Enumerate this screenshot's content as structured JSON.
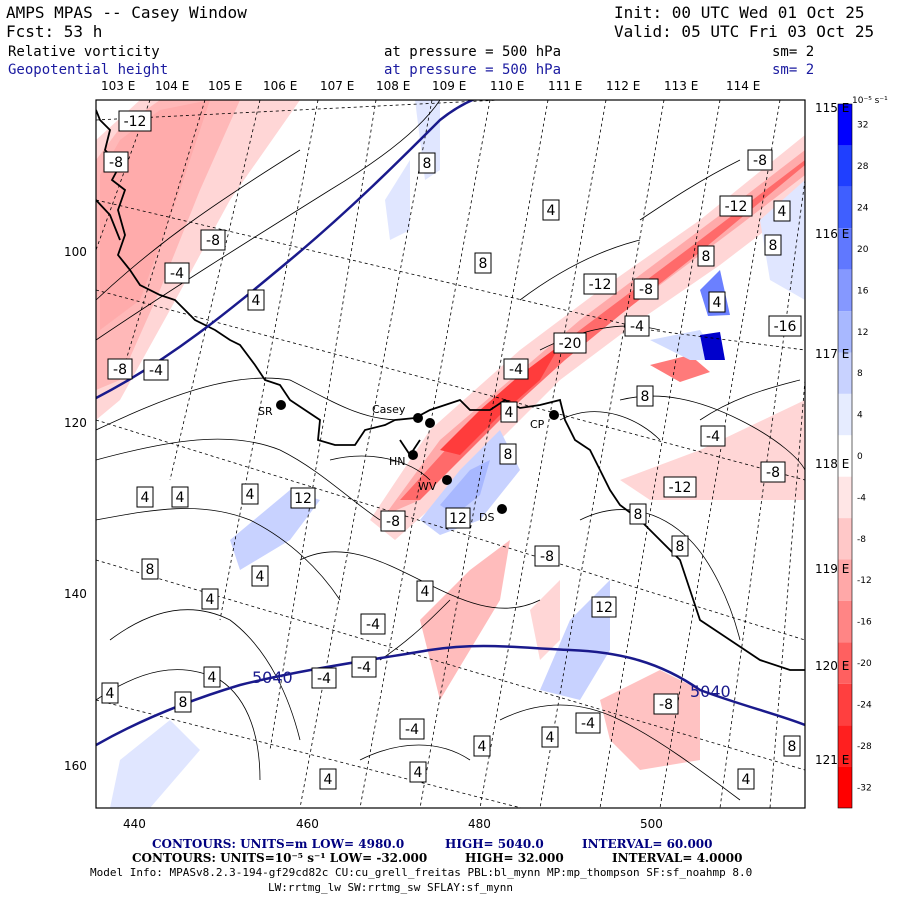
{
  "header": {
    "title": "AMPS MPAS -- Casey Window",
    "init": "Init: 00 UTC Wed 01 Oct 25",
    "fcst": "Fcst:   53 h",
    "valid": "Valid: 05 UTC Fri 03 Oct 25",
    "var1": {
      "name": "Relative vorticity",
      "level": "at pressure =  500 hPa",
      "sm": "sm= 2"
    },
    "var2": {
      "name": "Geopotential height",
      "level": "at pressure =  500 hPa",
      "sm": "sm= 2"
    }
  },
  "map": {
    "top_lon_labels": [
      "103 E",
      "104 E",
      "105 E",
      "106 E",
      "107 E",
      "108 E",
      "109 E",
      "110 E",
      "111 E",
      "112 E",
      "113 E",
      "114 E"
    ],
    "right_lon_labels": [
      "115 E",
      "116 E",
      "117 E",
      "118 E",
      "119 E",
      "120 E",
      "121 E"
    ],
    "x_ticks": [
      "440",
      "460",
      "480",
      "500"
    ],
    "y_ticks": [
      "100",
      "120",
      "140",
      "160"
    ],
    "stations": [
      {
        "name": "SR"
      },
      {
        "name": "Casey"
      },
      {
        "name": "HN"
      },
      {
        "name": "WV"
      },
      {
        "name": "DS"
      },
      {
        "name": "CP"
      }
    ],
    "height_labels": [
      "5040",
      "5040"
    ],
    "vort_labels": [
      "-12",
      "-8",
      "-8",
      "-4",
      "4",
      "-8",
      "-4",
      "8",
      "4",
      "8",
      "-12",
      "-8",
      "4",
      "-12",
      "8",
      "-8",
      "8",
      "4",
      "-4",
      "-16",
      "-20",
      "-4",
      "4",
      "8",
      "-4",
      "-8",
      "4",
      "-12",
      "8",
      "4",
      "4",
      "12",
      "-8",
      "12",
      "8",
      "-8",
      "8",
      "4",
      "-4",
      "4",
      "4",
      "12",
      "8",
      "-4",
      "-4",
      "4",
      "8",
      "4",
      "-4",
      "4",
      "4",
      "-8",
      "4",
      "4",
      "8",
      "4",
      "-4"
    ]
  },
  "colorbar": {
    "unit": "10⁻⁵ s⁻¹",
    "labels": [
      "32",
      "28",
      "24",
      "20",
      "16",
      "12",
      "8",
      "4",
      "0",
      "-4",
      "-8",
      "-12",
      "-16",
      "-20",
      "-24",
      "-28",
      "-32"
    ],
    "colors": [
      "#0000ff",
      "#1f3fff",
      "#3f5fff",
      "#6078ff",
      "#8598ff",
      "#a8b8ff",
      "#c8d2ff",
      "#e6ecff",
      "#ffffff",
      "#ffe6e6",
      "#ffc8c8",
      "#ffa8a8",
      "#ff8585",
      "#ff6060",
      "#ff3f3f",
      "#ff1f1f",
      "#ff0000"
    ]
  },
  "footer": {
    "line1_a": "CONTOURS:  UNITS=m  LOW=  4980.0",
    "line1_b": "HIGH=  5040.0",
    "line1_c": "INTERVAL=   60.000",
    "line2_a": "CONTOURS:  UNITS=10⁻⁵ s⁻¹  LOW= -32.000",
    "line2_b": "HIGH=  32.000",
    "line2_c": "INTERVAL=   4.0000",
    "model1": "Model Info: MPASv8.2.3-194-gf29cd82c CU:cu_grell_freitas PBL:bl_mynn MP:mp_thompson SF:sf_noahmp 8.0",
    "model2": "LW:rrtmg_lw SW:rrtmg_sw SFLAY:sf_mynn"
  }
}
